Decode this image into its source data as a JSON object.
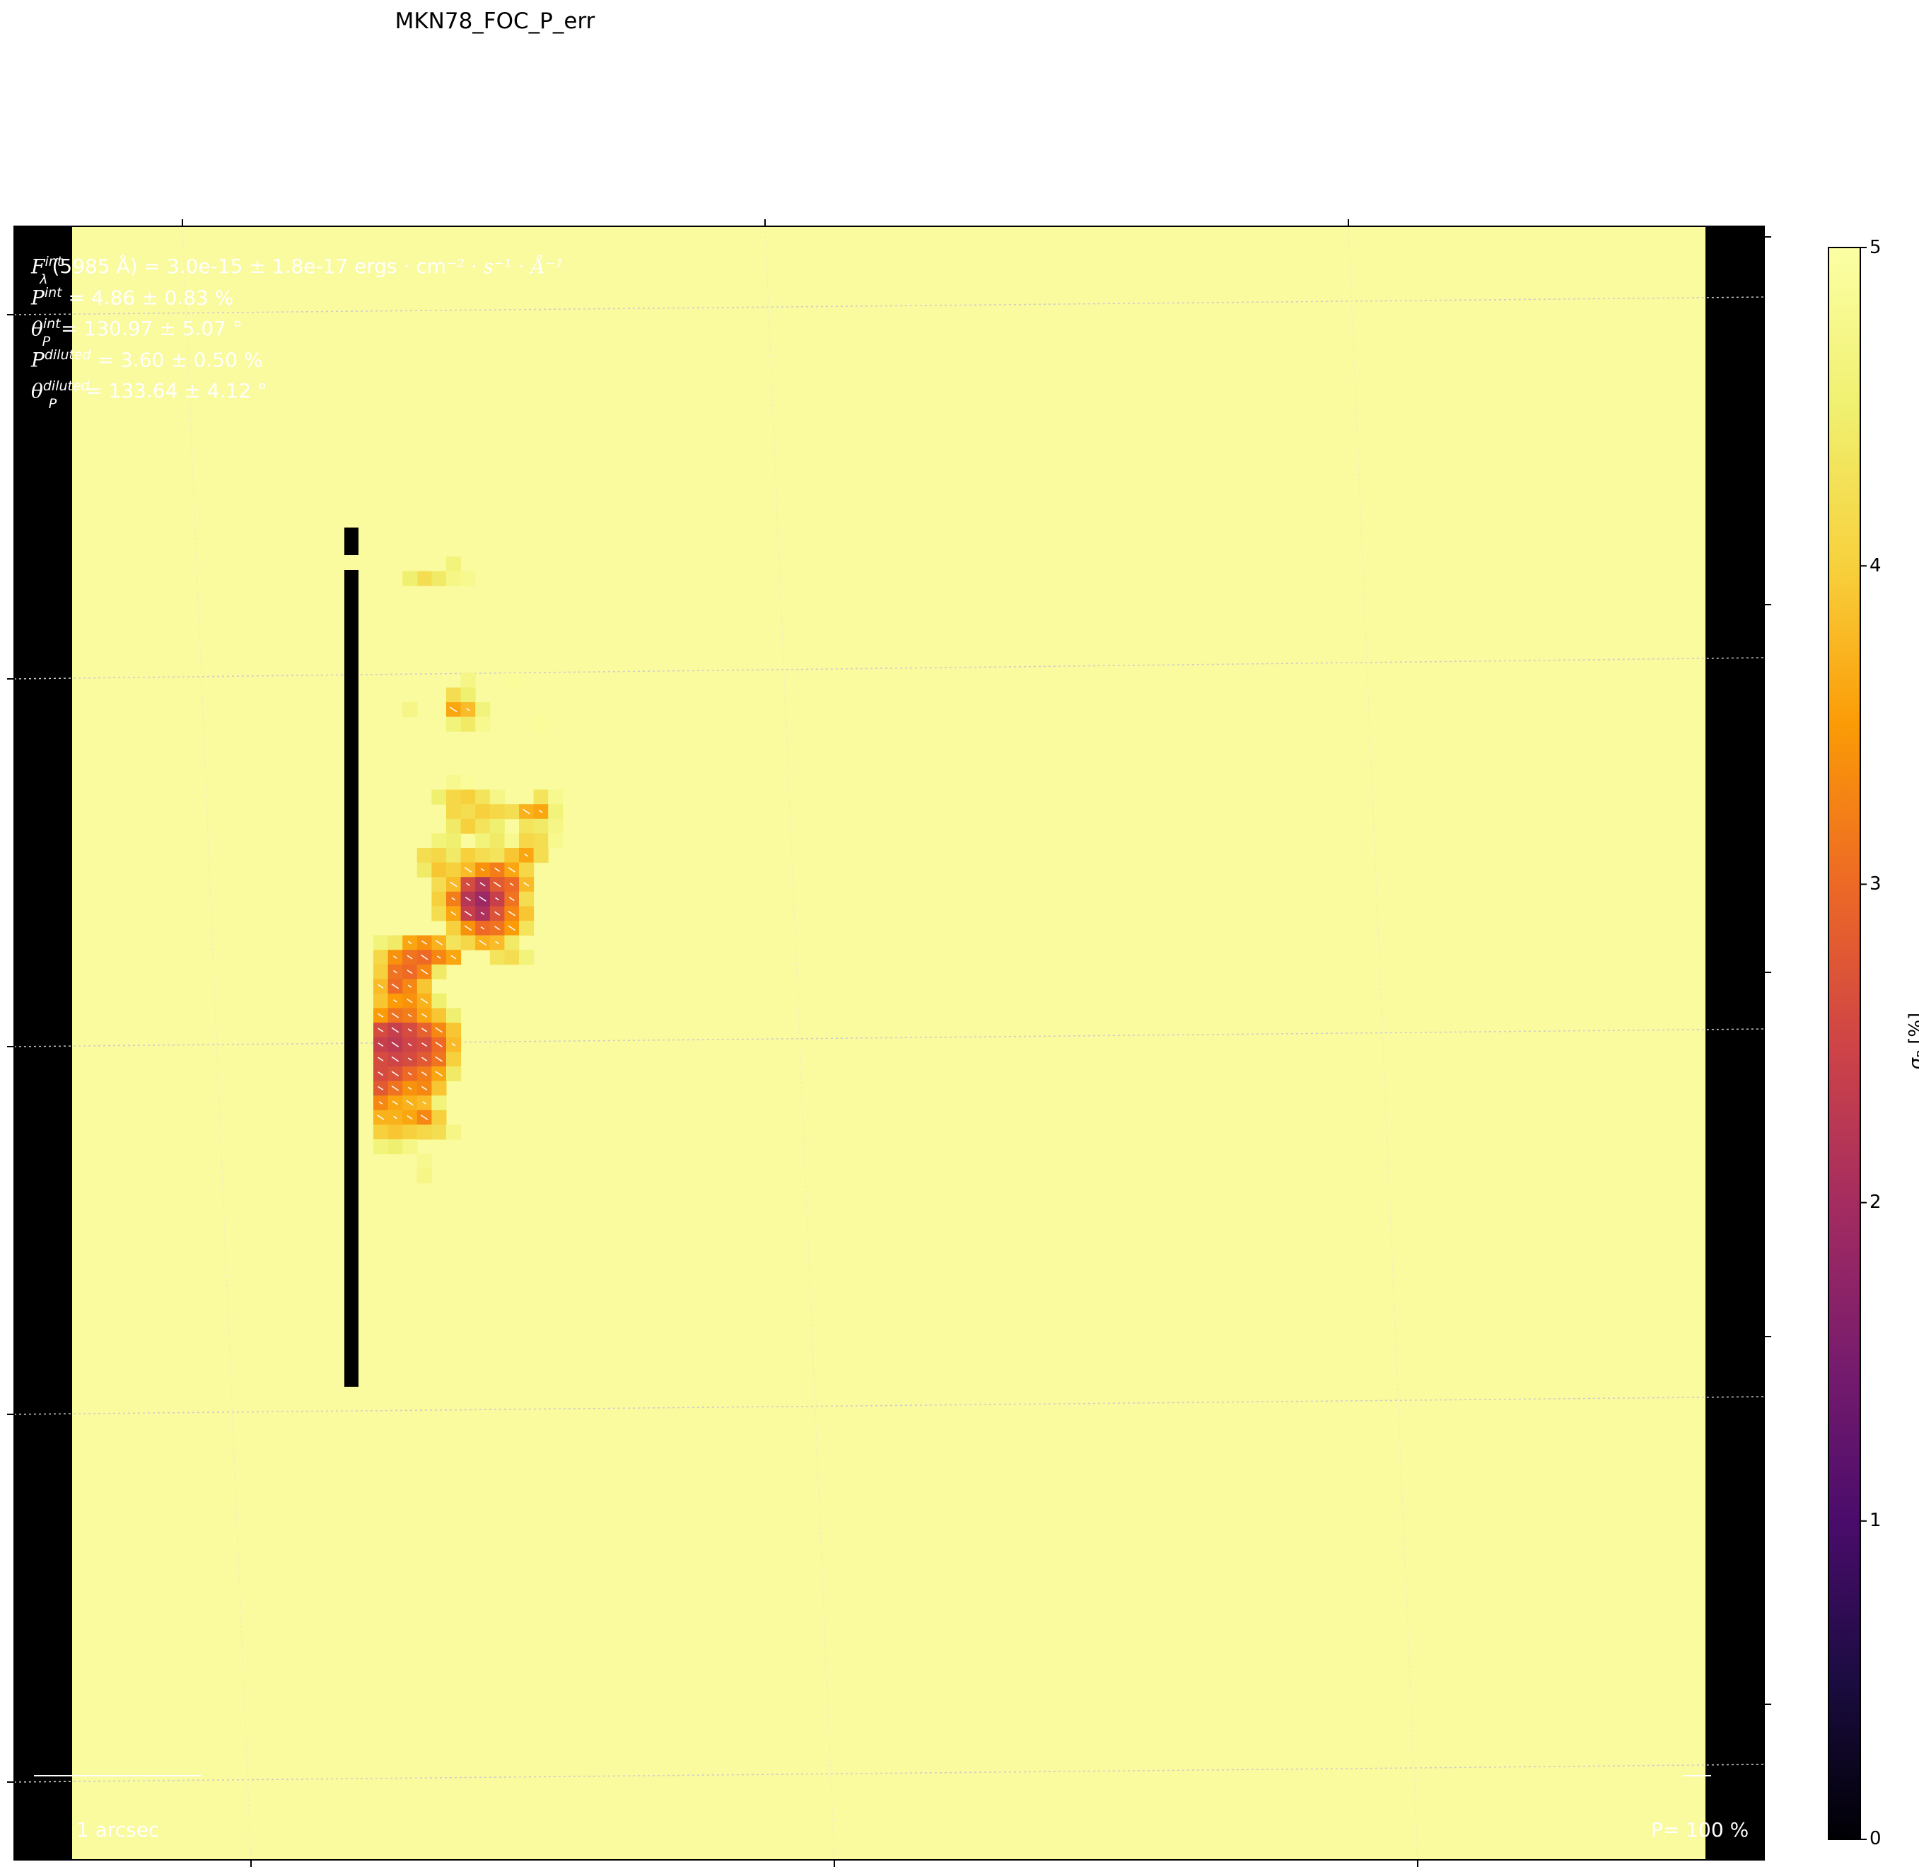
{
  "title": "MKN78_FOC_P_err",
  "annotations": {
    "flux": "F_λ^int(5985 Å) = 3.0e-15 ± 1.8e-17 ergs · cm⁻² · s⁻¹ · Å⁻¹",
    "flux_parts": {
      "sym": "F",
      "sup": "int",
      "sub": "λ",
      "rest": "(5985 Å) = 3.0e-15 ± 1.8e-17 ergs · cm",
      "unit_tail": "⁻² · s⁻¹ · Å⁻¹"
    },
    "p_int": {
      "sym": "P",
      "sup": "int",
      "rest": " = 4.86 ± 0.83 %"
    },
    "theta_int": {
      "sym": "θ",
      "sub": "P",
      "sup": "int",
      "rest": " = 130.97 ± 5.07 °"
    },
    "p_diluted": {
      "sym": "P",
      "sup": "diluted",
      "rest": " = 3.60 ± 0.50 %"
    },
    "theta_diluted": {
      "sym": "θ",
      "sub": "P",
      "sup": "diluted",
      "rest": " = 133.64 ± 4.12 °"
    },
    "scalebar_label": "1 arcsec",
    "pol_scale_label": "P= 100 %"
  },
  "colorbar": {
    "label": "σ_P [%]",
    "label_sym": "σ",
    "label_sub": "P",
    "label_unit": "[%]",
    "min": 0,
    "max": 5,
    "ticks": [
      "0",
      "1",
      "2",
      "3",
      "4",
      "5"
    ],
    "colormap": "inferno"
  },
  "chart_data": {
    "type": "heatmap",
    "title": "MKN78_FOC_P_err",
    "colorbar_label": "σ_P [%]",
    "vmin": 0,
    "vmax": 5,
    "background_value": 5,
    "note_masked": "black vertical bar at column 0",
    "grid": true,
    "cells": [
      {
        "col": 5,
        "row": 0,
        "v": 4.6
      },
      {
        "col": 3,
        "row": 1,
        "v": 4.2
      },
      {
        "col": 4,
        "row": 1,
        "v": 4.4
      },
      {
        "col": 5,
        "row": 1,
        "v": 4.7
      },
      {
        "col": 6,
        "row": 1,
        "v": 4.8
      },
      {
        "col": 2,
        "row": 1,
        "v": 4.5
      },
      {
        "col": 6,
        "row": 8,
        "v": 4.7
      },
      {
        "col": 9,
        "row": 8,
        "v": 4.9
      },
      {
        "col": 5,
        "row": 9,
        "v": 4.2
      },
      {
        "col": 6,
        "row": 9,
        "v": 4.5
      },
      {
        "col": 2,
        "row": 10,
        "v": 4.7
      },
      {
        "col": 5,
        "row": 10,
        "v": 3.6
      },
      {
        "col": 6,
        "row": 10,
        "v": 3.8
      },
      {
        "col": 7,
        "row": 10,
        "v": 4.6
      },
      {
        "col": 5,
        "row": 11,
        "v": 4.6
      },
      {
        "col": 6,
        "row": 11,
        "v": 4.4
      },
      {
        "col": 7,
        "row": 11,
        "v": 4.8
      },
      {
        "col": 11,
        "row": 11,
        "v": 4.9
      },
      {
        "col": 5,
        "row": 15,
        "v": 4.8
      },
      {
        "col": 6,
        "row": 15,
        "v": 4.9
      },
      {
        "col": 4,
        "row": 16,
        "v": 4.5
      },
      {
        "col": 5,
        "row": 16,
        "v": 4.1
      },
      {
        "col": 6,
        "row": 16,
        "v": 4.0
      },
      {
        "col": 7,
        "row": 16,
        "v": 4.3
      },
      {
        "col": 8,
        "row": 16,
        "v": 4.7
      },
      {
        "col": 11,
        "row": 16,
        "v": 4.3
      },
      {
        "col": 12,
        "row": 16,
        "v": 4.8
      },
      {
        "col": 5,
        "row": 17,
        "v": 4.1
      },
      {
        "col": 6,
        "row": 17,
        "v": 4.2
      },
      {
        "col": 7,
        "row": 17,
        "v": 4.0
      },
      {
        "col": 8,
        "row": 17,
        "v": 4.1
      },
      {
        "col": 9,
        "row": 17,
        "v": 4.2
      },
      {
        "col": 10,
        "row": 17,
        "v": 3.7
      },
      {
        "col": 11,
        "row": 17,
        "v": 3.6
      },
      {
        "col": 12,
        "row": 17,
        "v": 4.6
      },
      {
        "col": 5,
        "row": 18,
        "v": 4.4
      },
      {
        "col": 6,
        "row": 18,
        "v": 4.0
      },
      {
        "col": 7,
        "row": 18,
        "v": 4.3
      },
      {
        "col": 8,
        "row": 18,
        "v": 4.5
      },
      {
        "col": 10,
        "row": 18,
        "v": 4.3
      },
      {
        "col": 11,
        "row": 18,
        "v": 4.4
      },
      {
        "col": 12,
        "row": 18,
        "v": 4.7
      },
      {
        "col": 4,
        "row": 19,
        "v": 4.6
      },
      {
        "col": 5,
        "row": 19,
        "v": 4.5
      },
      {
        "col": 7,
        "row": 19,
        "v": 4.6
      },
      {
        "col": 8,
        "row": 19,
        "v": 4.4
      },
      {
        "col": 9,
        "row": 19,
        "v": 4.8
      },
      {
        "col": 10,
        "row": 19,
        "v": 4.1
      },
      {
        "col": 11,
        "row": 19,
        "v": 4.2
      },
      {
        "col": 12,
        "row": 19,
        "v": 4.8
      },
      {
        "col": 3,
        "row": 20,
        "v": 4.2
      },
      {
        "col": 4,
        "row": 20,
        "v": 4.1
      },
      {
        "col": 5,
        "row": 20,
        "v": 4.4
      },
      {
        "col": 6,
        "row": 20,
        "v": 4.0
      },
      {
        "col": 7,
        "row": 20,
        "v": 4.2
      },
      {
        "col": 8,
        "row": 20,
        "v": 4.3
      },
      {
        "col": 9,
        "row": 20,
        "v": 3.9
      },
      {
        "col": 10,
        "row": 20,
        "v": 3.6
      },
      {
        "col": 11,
        "row": 20,
        "v": 4.2
      },
      {
        "col": 3,
        "row": 21,
        "v": 4.4
      },
      {
        "col": 4,
        "row": 21,
        "v": 3.9
      },
      {
        "col": 5,
        "row": 21,
        "v": 4.0
      },
      {
        "col": 6,
        "row": 21,
        "v": 3.8
      },
      {
        "col": 7,
        "row": 21,
        "v": 3.4
      },
      {
        "col": 8,
        "row": 21,
        "v": 3.2
      },
      {
        "col": 9,
        "row": 21,
        "v": 3.6
      },
      {
        "col": 10,
        "row": 21,
        "v": 4.1
      },
      {
        "col": 4,
        "row": 22,
        "v": 4.2
      },
      {
        "col": 5,
        "row": 22,
        "v": 3.8
      },
      {
        "col": 6,
        "row": 22,
        "v": 2.6
      },
      {
        "col": 7,
        "row": 22,
        "v": 2.2
      },
      {
        "col": 8,
        "row": 22,
        "v": 2.8
      },
      {
        "col": 9,
        "row": 22,
        "v": 3.0
      },
      {
        "col": 10,
        "row": 22,
        "v": 3.8
      },
      {
        "col": 4,
        "row": 23,
        "v": 4.0
      },
      {
        "col": 5,
        "row": 23,
        "v": 3.2
      },
      {
        "col": 6,
        "row": 23,
        "v": 2.2
      },
      {
        "col": 7,
        "row": 23,
        "v": 1.9
      },
      {
        "col": 8,
        "row": 23,
        "v": 2.4
      },
      {
        "col": 9,
        "row": 23,
        "v": 3.1
      },
      {
        "col": 10,
        "row": 23,
        "v": 4.2
      },
      {
        "col": 4,
        "row": 24,
        "v": 4.2
      },
      {
        "col": 5,
        "row": 24,
        "v": 3.6
      },
      {
        "col": 6,
        "row": 24,
        "v": 2.4
      },
      {
        "col": 7,
        "row": 24,
        "v": 2.1
      },
      {
        "col": 8,
        "row": 24,
        "v": 2.7
      },
      {
        "col": 9,
        "row": 24,
        "v": 3.3
      },
      {
        "col": 10,
        "row": 24,
        "v": 3.9
      },
      {
        "col": 5,
        "row": 25,
        "v": 4.0
      },
      {
        "col": 6,
        "row": 25,
        "v": 3.4
      },
      {
        "col": 7,
        "row": 25,
        "v": 3.0
      },
      {
        "col": 8,
        "row": 25,
        "v": 3.1
      },
      {
        "col": 9,
        "row": 25,
        "v": 3.5
      },
      {
        "col": 10,
        "row": 25,
        "v": 4.3
      },
      {
        "col": 0,
        "row": 26,
        "v": 4.6
      },
      {
        "col": 1,
        "row": 26,
        "v": 4.4
      },
      {
        "col": 2,
        "row": 26,
        "v": 3.6
      },
      {
        "col": 3,
        "row": 26,
        "v": 3.4
      },
      {
        "col": 4,
        "row": 26,
        "v": 3.7
      },
      {
        "col": 5,
        "row": 26,
        "v": 4.3
      },
      {
        "col": 6,
        "row": 26,
        "v": 4.1
      },
      {
        "col": 7,
        "row": 26,
        "v": 3.7
      },
      {
        "col": 8,
        "row": 26,
        "v": 3.8
      },
      {
        "col": 9,
        "row": 26,
        "v": 4.4
      },
      {
        "col": 0,
        "row": 27,
        "v": 4.1
      },
      {
        "col": 1,
        "row": 27,
        "v": 3.4
      },
      {
        "col": 2,
        "row": 27,
        "v": 3.1
      },
      {
        "col": 3,
        "row": 27,
        "v": 3.0
      },
      {
        "col": 4,
        "row": 27,
        "v": 3.3
      },
      {
        "col": 5,
        "row": 27,
        "v": 3.6
      },
      {
        "col": 8,
        "row": 27,
        "v": 4.3
      },
      {
        "col": 9,
        "row": 27,
        "v": 4.2
      },
      {
        "col": 10,
        "row": 27,
        "v": 4.6
      },
      {
        "col": 0,
        "row": 28,
        "v": 4.0
      },
      {
        "col": 1,
        "row": 28,
        "v": 3.1
      },
      {
        "col": 2,
        "row": 28,
        "v": 3.0
      },
      {
        "col": 3,
        "row": 28,
        "v": 3.3
      },
      {
        "col": 4,
        "row": 28,
        "v": 4.4
      },
      {
        "col": 0,
        "row": 29,
        "v": 3.8
      },
      {
        "col": 1,
        "row": 29,
        "v": 3.0
      },
      {
        "col": 2,
        "row": 29,
        "v": 3.3
      },
      {
        "col": 3,
        "row": 29,
        "v": 3.9
      },
      {
        "col": 0,
        "row": 30,
        "v": 3.9
      },
      {
        "col": 1,
        "row": 30,
        "v": 3.5
      },
      {
        "col": 2,
        "row": 30,
        "v": 3.4
      },
      {
        "col": 3,
        "row": 30,
        "v": 3.7
      },
      {
        "col": 4,
        "row": 30,
        "v": 4.5
      },
      {
        "col": 0,
        "row": 31,
        "v": 3.5
      },
      {
        "col": 1,
        "row": 31,
        "v": 3.1
      },
      {
        "col": 2,
        "row": 31,
        "v": 3.2
      },
      {
        "col": 3,
        "row": 31,
        "v": 3.6
      },
      {
        "col": 4,
        "row": 31,
        "v": 3.9
      },
      {
        "col": 5,
        "row": 31,
        "v": 4.5
      },
      {
        "col": 0,
        "row": 32,
        "v": 2.6
      },
      {
        "col": 1,
        "row": 32,
        "v": 2.4
      },
      {
        "col": 2,
        "row": 32,
        "v": 2.6
      },
      {
        "col": 3,
        "row": 32,
        "v": 2.9
      },
      {
        "col": 4,
        "row": 32,
        "v": 3.3
      },
      {
        "col": 5,
        "row": 32,
        "v": 3.9
      },
      {
        "col": 0,
        "row": 33,
        "v": 2.4
      },
      {
        "col": 1,
        "row": 33,
        "v": 2.3
      },
      {
        "col": 2,
        "row": 33,
        "v": 2.5
      },
      {
        "col": 3,
        "row": 33,
        "v": 2.6
      },
      {
        "col": 4,
        "row": 33,
        "v": 3.0
      },
      {
        "col": 5,
        "row": 33,
        "v": 3.8
      },
      {
        "col": 0,
        "row": 34,
        "v": 2.6
      },
      {
        "col": 1,
        "row": 34,
        "v": 2.5
      },
      {
        "col": 2,
        "row": 34,
        "v": 2.6
      },
      {
        "col": 3,
        "row": 34,
        "v": 2.8
      },
      {
        "col": 4,
        "row": 34,
        "v": 3.1
      },
      {
        "col": 5,
        "row": 34,
        "v": 4.0
      },
      {
        "col": 0,
        "row": 35,
        "v": 2.6
      },
      {
        "col": 1,
        "row": 35,
        "v": 2.7
      },
      {
        "col": 2,
        "row": 35,
        "v": 3.0
      },
      {
        "col": 3,
        "row": 35,
        "v": 3.2
      },
      {
        "col": 4,
        "row": 35,
        "v": 3.6
      },
      {
        "col": 5,
        "row": 35,
        "v": 4.4
      },
      {
        "col": 0,
        "row": 36,
        "v": 2.8
      },
      {
        "col": 1,
        "row": 36,
        "v": 3.1
      },
      {
        "col": 2,
        "row": 36,
        "v": 3.4
      },
      {
        "col": 3,
        "row": 36,
        "v": 3.3
      },
      {
        "col": 4,
        "row": 36,
        "v": 3.9
      },
      {
        "col": 0,
        "row": 37,
        "v": 3.3
      },
      {
        "col": 1,
        "row": 37,
        "v": 3.6
      },
      {
        "col": 2,
        "row": 37,
        "v": 3.7
      },
      {
        "col": 3,
        "row": 37,
        "v": 3.8
      },
      {
        "col": 4,
        "row": 37,
        "v": 4.6
      },
      {
        "col": 0,
        "row": 38,
        "v": 3.7
      },
      {
        "col": 1,
        "row": 38,
        "v": 3.7
      },
      {
        "col": 2,
        "row": 38,
        "v": 3.6
      },
      {
        "col": 3,
        "row": 38,
        "v": 3.3
      },
      {
        "col": 4,
        "row": 38,
        "v": 4.0
      },
      {
        "col": 0,
        "row": 39,
        "v": 4.0
      },
      {
        "col": 1,
        "row": 39,
        "v": 3.9
      },
      {
        "col": 2,
        "row": 39,
        "v": 4.0
      },
      {
        "col": 3,
        "row": 39,
        "v": 4.1
      },
      {
        "col": 4,
        "row": 39,
        "v": 4.2
      },
      {
        "col": 5,
        "row": 39,
        "v": 4.7
      },
      {
        "col": 0,
        "row": 40,
        "v": 4.6
      },
      {
        "col": 1,
        "row": 40,
        "v": 4.5
      },
      {
        "col": 2,
        "row": 40,
        "v": 4.7
      },
      {
        "col": 3,
        "row": 41,
        "v": 4.8
      },
      {
        "col": 3,
        "row": 42,
        "v": 4.7
      }
    ]
  }
}
